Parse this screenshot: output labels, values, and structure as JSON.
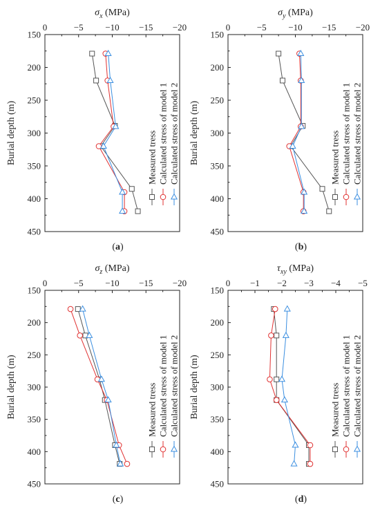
{
  "colors": {
    "measured": "#555555",
    "model1": "#e03030",
    "model2": "#3a8ee0",
    "axis": "#222222"
  },
  "legend": [
    "Measured tress",
    "Calculated stress of model 1",
    "Calculated stress of model 2"
  ],
  "chart_data": [
    {
      "type": "line",
      "panel": "a",
      "title_symbol": "σ",
      "title_sub": "x",
      "title_unit": " (MPa)",
      "ylabel": "Burial depth (m)",
      "xlim": [
        0,
        -20
      ],
      "xticks": [
        0,
        -5,
        -10,
        -15,
        -20
      ],
      "xtick_labels": [
        "0",
        "−5",
        "−10",
        "−15",
        "−20"
      ],
      "ylim": [
        150,
        450
      ],
      "yticks": [
        150,
        200,
        250,
        300,
        350,
        400,
        450
      ],
      "ytick_labels": [
        "150",
        "200",
        "250",
        "300",
        "350",
        "400",
        "450"
      ],
      "series": [
        {
          "name": "Measured tress",
          "marker": "square",
          "points": [
            [
              -7.0,
              179
            ],
            [
              -7.6,
              220
            ],
            [
              -10.4,
              289
            ],
            [
              -8.3,
              320
            ],
            [
              -12.9,
              385
            ],
            [
              -13.8,
              419
            ]
          ]
        },
        {
          "name": "Calculated stress of model 1",
          "marker": "circle",
          "points": [
            [
              -9.0,
              179
            ],
            [
              -9.3,
              220
            ],
            [
              -10.2,
              290
            ],
            [
              -8.0,
              320
            ],
            [
              -11.8,
              390
            ],
            [
              -11.8,
              419
            ]
          ]
        },
        {
          "name": "Calculated stress of model 2",
          "marker": "triangle",
          "points": [
            [
              -9.4,
              179
            ],
            [
              -9.7,
              220
            ],
            [
              -10.5,
              290
            ],
            [
              -8.7,
              320
            ],
            [
              -11.5,
              390
            ],
            [
              -11.5,
              419
            ]
          ]
        }
      ]
    },
    {
      "type": "line",
      "panel": "b",
      "title_symbol": "σ",
      "title_sub": "y",
      "title_unit": " (MPa)",
      "ylabel": "Burial depth (m)",
      "xlim": [
        0,
        -20
      ],
      "xticks": [
        0,
        -5,
        -10,
        -15,
        -20
      ],
      "xtick_labels": [
        "0",
        "−5",
        "−10",
        "−15",
        "−20"
      ],
      "ylim": [
        150,
        450
      ],
      "yticks": [
        150,
        200,
        250,
        300,
        350,
        400,
        450
      ],
      "ytick_labels": [
        "150",
        "200",
        "250",
        "300",
        "350",
        "400",
        "450"
      ],
      "series": [
        {
          "name": "Measured tress",
          "marker": "square",
          "points": [
            [
              -7.5,
              179
            ],
            [
              -8.1,
              220
            ],
            [
              -11.1,
              289
            ],
            [
              -9.3,
              320
            ],
            [
              -14.0,
              385
            ],
            [
              -15.0,
              419
            ]
          ]
        },
        {
          "name": "Calculated stress of model 1",
          "marker": "circle",
          "points": [
            [
              -10.6,
              179
            ],
            [
              -10.8,
              220
            ],
            [
              -10.8,
              290
            ],
            [
              -9.1,
              320
            ],
            [
              -11.2,
              390
            ],
            [
              -11.2,
              419
            ]
          ]
        },
        {
          "name": "Calculated stress of model 2",
          "marker": "triangle",
          "points": [
            [
              -10.8,
              179
            ],
            [
              -10.9,
              220
            ],
            [
              -10.9,
              290
            ],
            [
              -9.6,
              320
            ],
            [
              -11.3,
              390
            ],
            [
              -11.3,
              419
            ]
          ]
        }
      ]
    },
    {
      "type": "line",
      "panel": "c",
      "title_symbol": "σ",
      "title_sub": "z",
      "title_unit": " (MPa)",
      "ylabel": "Burial depth (m)",
      "xlim": [
        0,
        -20
      ],
      "xticks": [
        0,
        -5,
        -10,
        -15,
        -20
      ],
      "xtick_labels": [
        "0",
        "−5",
        "−10",
        "−15",
        "−20"
      ],
      "ylim": [
        150,
        450
      ],
      "yticks": [
        150,
        200,
        250,
        300,
        350,
        400,
        450
      ],
      "ytick_labels": [
        "150",
        "200",
        "250",
        "300",
        "350",
        "400",
        "450"
      ],
      "series": [
        {
          "name": "Measured tress",
          "marker": "square",
          "points": [
            [
              -4.9,
              179
            ],
            [
              -6.0,
              220
            ],
            [
              -8.1,
              288
            ],
            [
              -8.9,
              320
            ],
            [
              -10.4,
              390
            ],
            [
              -11.1,
              419
            ]
          ]
        },
        {
          "name": "Calculated stress of model 1",
          "marker": "circle",
          "points": [
            [
              -3.8,
              179
            ],
            [
              -5.2,
              220
            ],
            [
              -7.8,
              288
            ],
            [
              -9.2,
              320
            ],
            [
              -11.0,
              390
            ],
            [
              -12.2,
              419
            ]
          ]
        },
        {
          "name": "Calculated stress of model 2",
          "marker": "triangle",
          "points": [
            [
              -5.6,
              179
            ],
            [
              -6.6,
              220
            ],
            [
              -8.4,
              288
            ],
            [
              -9.4,
              320
            ],
            [
              -10.6,
              390
            ],
            [
              -11.2,
              419
            ]
          ]
        }
      ]
    },
    {
      "type": "line",
      "panel": "d",
      "title_symbol": "τ",
      "title_sub": "xy",
      "title_unit": " (MPa)",
      "ylabel": "Burial depth (m)",
      "xlim": [
        0,
        -5
      ],
      "xticks": [
        0,
        -1,
        -2,
        -3,
        -4,
        -5
      ],
      "xtick_labels": [
        "0",
        "−1",
        "−2",
        "−3",
        "−4",
        "−5"
      ],
      "ylim": [
        150,
        450
      ],
      "yticks": [
        150,
        200,
        250,
        300,
        350,
        400,
        450
      ],
      "ytick_labels": [
        "150",
        "200",
        "250",
        "300",
        "350",
        "400",
        "450"
      ],
      "series": [
        {
          "name": "Measured tress",
          "marker": "square",
          "points": [
            [
              -1.7,
              179
            ],
            [
              -1.8,
              220
            ],
            [
              -1.8,
              288
            ],
            [
              -1.8,
              320
            ],
            [
              -3.0,
              390
            ],
            [
              -3.0,
              419
            ]
          ]
        },
        {
          "name": "Calculated stress of model 1",
          "marker": "circle",
          "points": [
            [
              -1.75,
              179
            ],
            [
              -1.6,
              220
            ],
            [
              -1.55,
              288
            ],
            [
              -1.8,
              320
            ],
            [
              -3.05,
              390
            ],
            [
              -3.05,
              419
            ]
          ]
        },
        {
          "name": "Calculated stress of model 2",
          "marker": "triangle",
          "points": [
            [
              -2.2,
              179
            ],
            [
              -2.15,
              220
            ],
            [
              -2.0,
              288
            ],
            [
              -2.1,
              320
            ],
            [
              -2.5,
              390
            ],
            [
              -2.45,
              419
            ]
          ]
        }
      ]
    }
  ]
}
